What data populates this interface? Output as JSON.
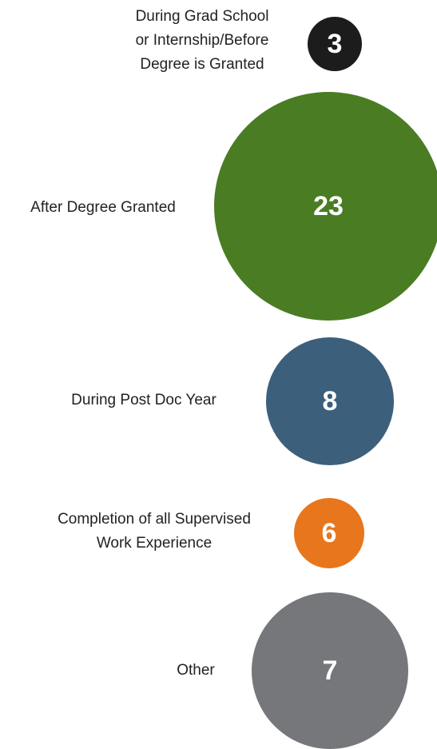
{
  "chart_data": {
    "type": "bubble",
    "categories": [
      [
        "During Grad School",
        "or Internship/Before",
        "Degree is Granted"
      ],
      [
        "After Degree Granted"
      ],
      [
        "During Post Doc Year"
      ],
      [
        "Completion of all Supervised",
        "Work Experience"
      ],
      [
        "Other"
      ]
    ],
    "values": [
      3,
      23,
      8,
      6,
      7
    ],
    "colors": [
      "#1c1c1c",
      "#4a7c23",
      "#3c5f7c",
      "#e8761c",
      "#76777b"
    ]
  }
}
